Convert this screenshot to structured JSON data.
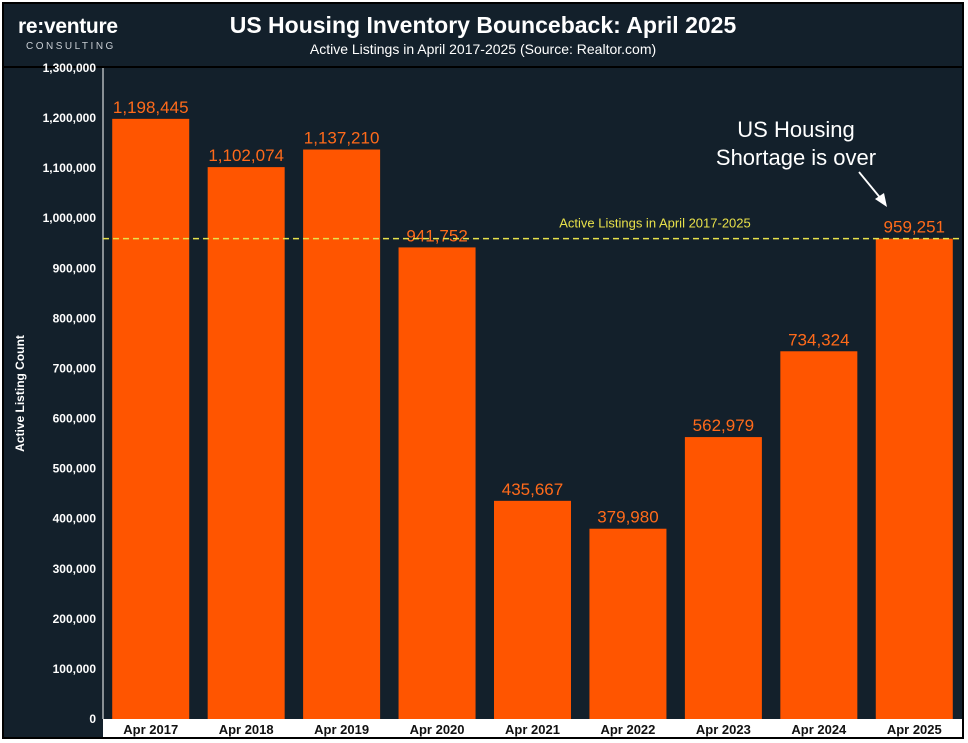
{
  "header": {
    "logo_main": "re:venture",
    "logo_sub": "CONSULTING"
  },
  "colors": {
    "bar": "#ff5500",
    "background": "#13202b",
    "reference_line": "#e8e14a",
    "axis_band": "#ffffff"
  },
  "chart_data": {
    "type": "bar",
    "title": "US Housing Inventory Bounceback: April 2025",
    "subtitle": "Active Listings in April 2017-2025 (Source: Realtor.com)",
    "xlabel": "",
    "ylabel": "Active Listing Count",
    "ylim": [
      0,
      1300000
    ],
    "yticks": [
      0,
      100000,
      200000,
      300000,
      400000,
      500000,
      600000,
      700000,
      800000,
      900000,
      1000000,
      1100000,
      1200000,
      1300000
    ],
    "categories": [
      "Apr 2017",
      "Apr 2018",
      "Apr 2019",
      "Apr 2020",
      "Apr 2021",
      "Apr 2022",
      "Apr 2023",
      "Apr 2024",
      "Apr 2025"
    ],
    "values": [
      1198445,
      1102074,
      1137210,
      941752,
      435667,
      379980,
      562979,
      734324,
      959251
    ],
    "data_labels": [
      "1,198,445",
      "1,102,074",
      "1,137,210",
      "941,752",
      "435,667",
      "379,980",
      "562,979",
      "734,324",
      "959,251"
    ],
    "reference_line": {
      "value": 959251,
      "label": "Active Listings in April 2017-2025",
      "style": "dashed"
    },
    "annotation": {
      "lines": [
        "US Housing",
        "Shortage is over"
      ],
      "points_to": "Apr 2025"
    },
    "grid": false
  }
}
